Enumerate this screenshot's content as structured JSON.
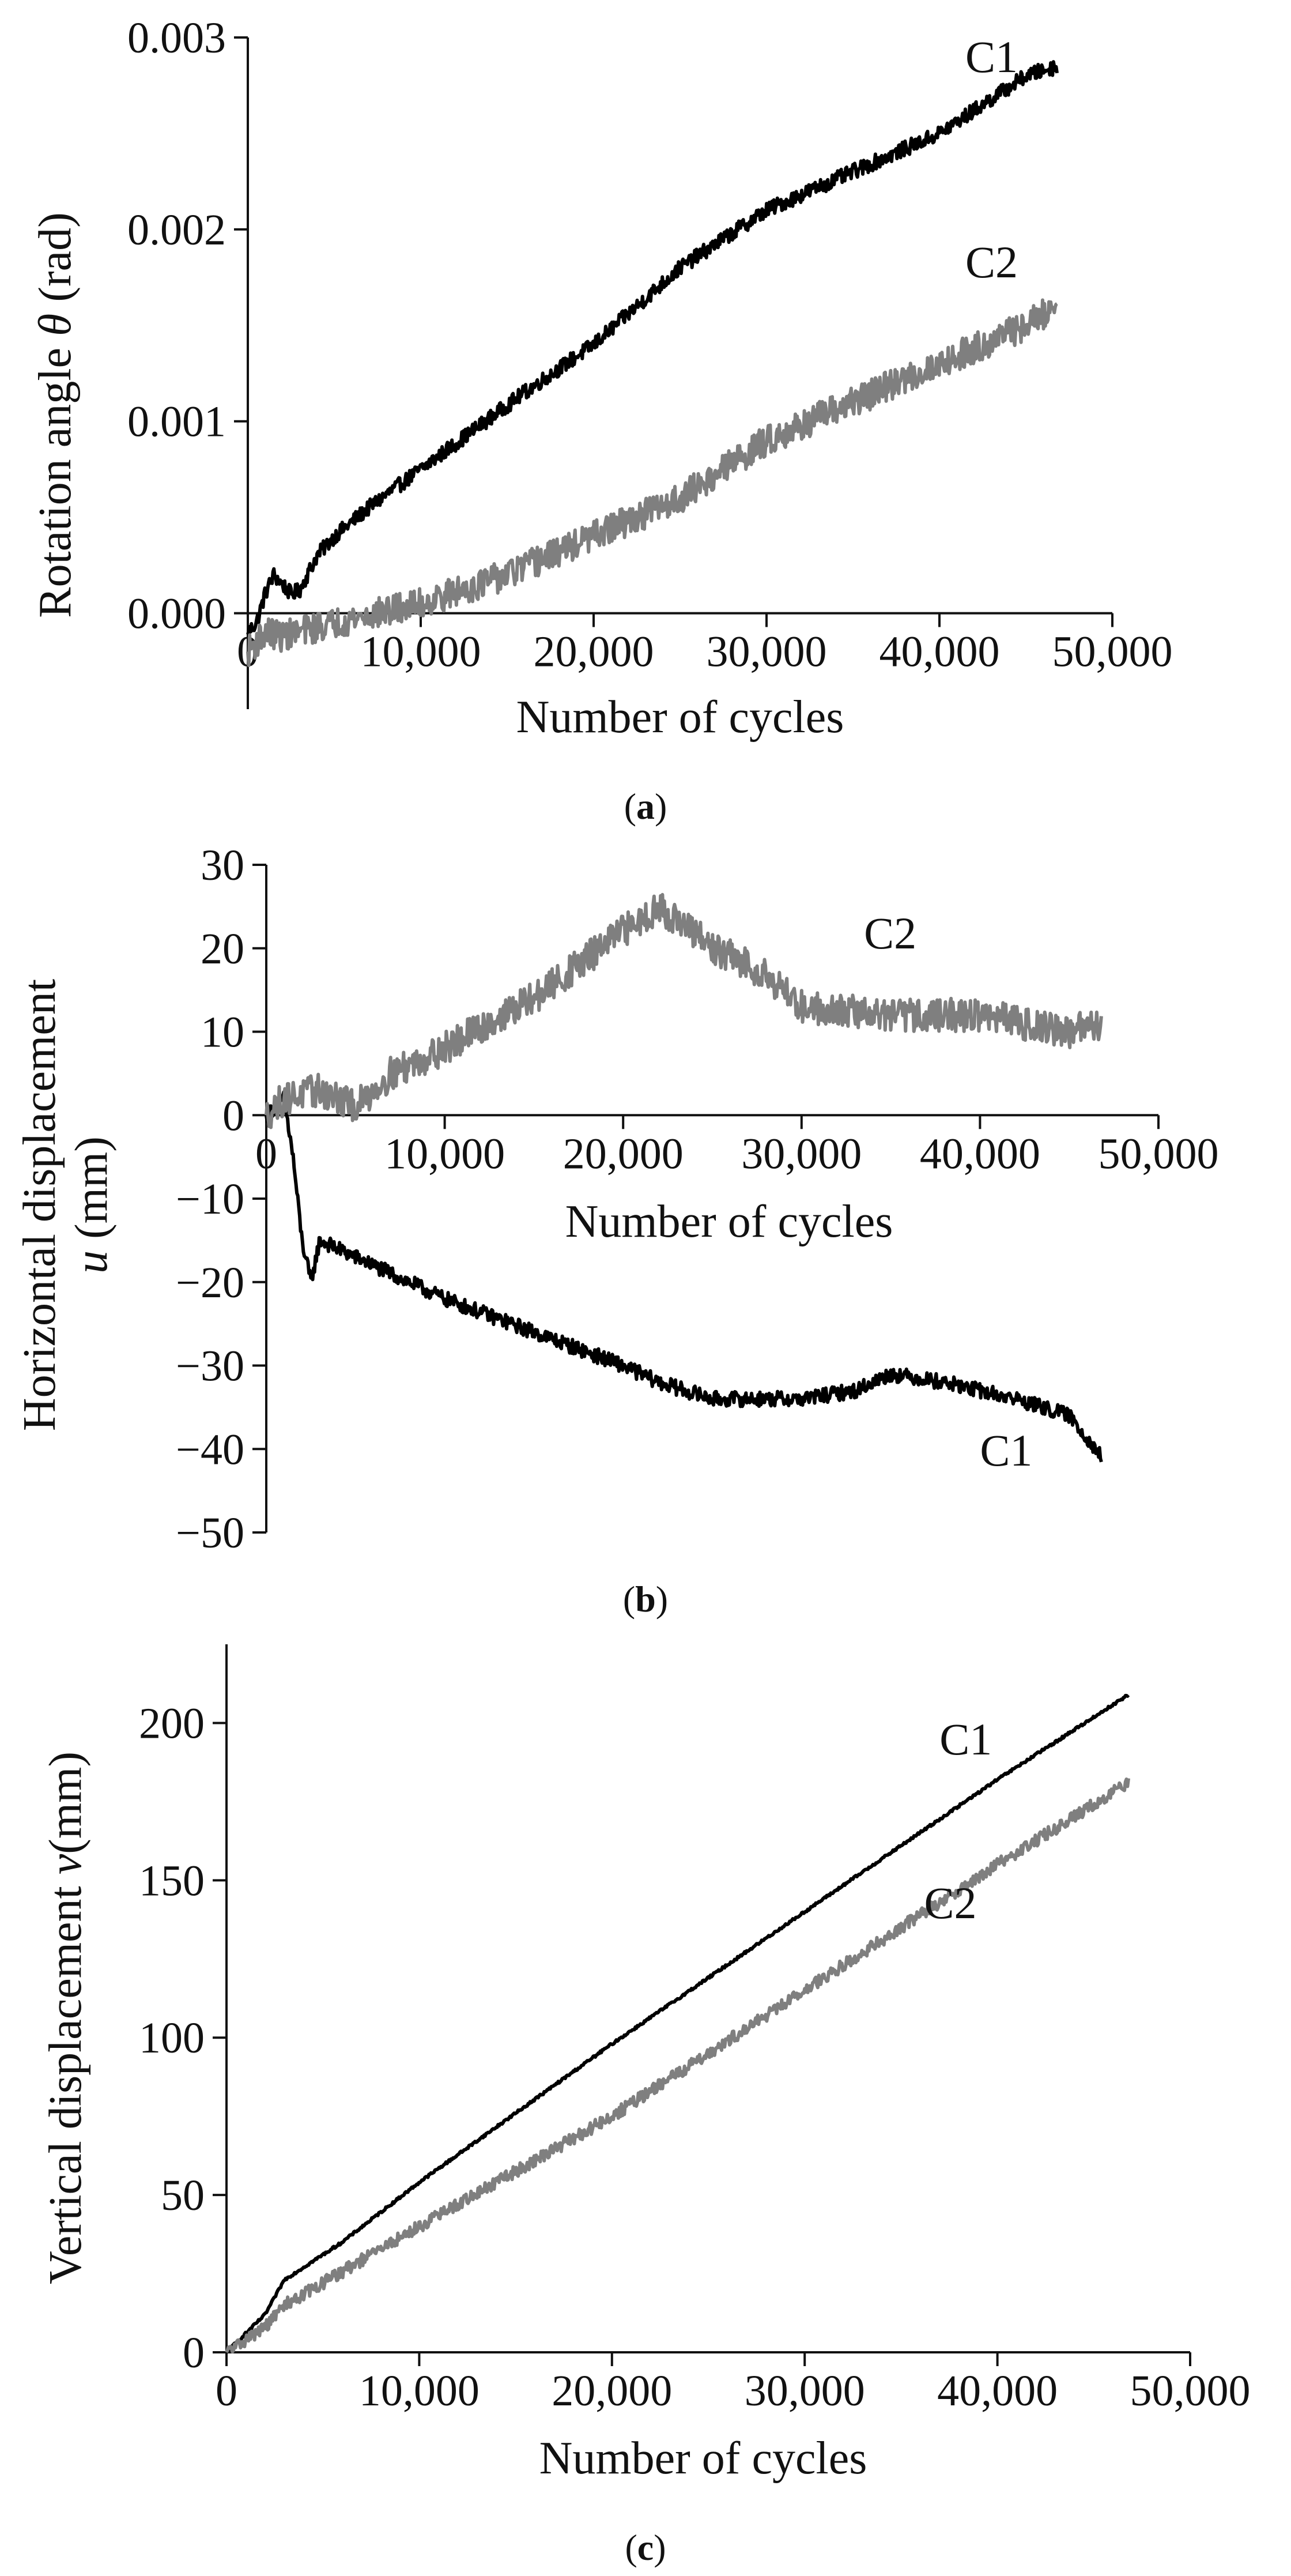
{
  "chart_data": [
    {
      "type": "line",
      "panel_label": "a",
      "title": "",
      "xlabel": "Number of cycles",
      "ylabel_prefix": "Rotation angle ",
      "ylabel_symbol": "θ",
      "ylabel_unit": " (rad)",
      "xlim": [
        0,
        50000
      ],
      "ylim": [
        -0.0005,
        0.003
      ],
      "x_ticks": [
        0,
        10000,
        20000,
        30000,
        40000,
        50000
      ],
      "x_tick_labels": [
        "0",
        "10,000",
        "20,000",
        "30,000",
        "40,000",
        "50,000"
      ],
      "y_ticks": [
        0,
        0.001,
        0.002,
        0.003
      ],
      "y_tick_labels": [
        "0.000",
        "0.001",
        "0.002",
        "0.003"
      ],
      "x_axis_at": 0,
      "grid": false,
      "series": [
        {
          "name": "C1",
          "color": "#000000",
          "noise": 4e-05,
          "x": [
            0,
            500,
            1000,
            1500,
            2000,
            2500,
            3000,
            4000,
            5000,
            7000,
            10000,
            13000,
            16000,
            20000,
            25000,
            30000,
            35000,
            40000,
            45000,
            46800
          ],
          "y": [
            -0.0001,
            -5e-05,
            0.0001,
            0.0002,
            0.00015,
            0.0001,
            0.00012,
            0.0003,
            0.0004,
            0.00055,
            0.00075,
            0.00095,
            0.00115,
            0.0014,
            0.0018,
            0.0021,
            0.0023,
            0.0025,
            0.0028,
            0.00285
          ],
          "label_at": [
            41500,
            0.00282
          ]
        },
        {
          "name": "C2",
          "color": "#7f7f7f",
          "noise": 8e-05,
          "x": [
            0,
            1000,
            2000,
            5000,
            10000,
            15000,
            20000,
            25000,
            30000,
            35000,
            40000,
            45000,
            46800
          ],
          "y": [
            -0.0002,
            -0.0001,
            -0.00012,
            -5e-05,
            5e-05,
            0.0002,
            0.0004,
            0.0006,
            0.0009,
            0.0011,
            0.0013,
            0.0015,
            0.0016
          ],
          "label_at": [
            41500,
            0.00175
          ]
        }
      ]
    },
    {
      "type": "line",
      "panel_label": "b",
      "title": "",
      "xlabel": "Number of cycles",
      "ylabel": "Horizontal displacement",
      "ylabel2_symbol": "u",
      "ylabel2_unit": " (mm)",
      "xlim": [
        0,
        50000
      ],
      "ylim": [
        -50,
        30
      ],
      "x_ticks": [
        0,
        10000,
        20000,
        30000,
        40000,
        50000
      ],
      "x_tick_labels": [
        "0",
        "10,000",
        "20,000",
        "30,000",
        "40,000",
        "50,000"
      ],
      "y_ticks": [
        -50,
        -40,
        -30,
        -20,
        -10,
        0,
        10,
        20,
        30
      ],
      "y_tick_labels": [
        "−50",
        "−40",
        "−30",
        "−20",
        "−10",
        "0",
        "10",
        "20",
        "30"
      ],
      "x_axis_at": 0,
      "grid": false,
      "series": [
        {
          "name": "C1",
          "color": "#000000",
          "noise": 0.9,
          "x": [
            0,
            1000,
            1500,
            2000,
            2500,
            3000,
            4000,
            6000,
            10000,
            15000,
            20000,
            22000,
            25000,
            30000,
            33000,
            35000,
            38000,
            42000,
            45000,
            46500,
            46800
          ],
          "y": [
            0,
            2,
            -5,
            -15,
            -20,
            -15,
            -16,
            -18,
            -22,
            -26,
            -30,
            -32,
            -34,
            -34,
            -33,
            -31,
            -32,
            -34,
            -36,
            -40,
            -41
          ],
          "label_at": [
            40000,
            -42
          ]
        },
        {
          "name": "C2",
          "color": "#7f7f7f",
          "noise": 2.0,
          "x": [
            0,
            1000,
            3000,
            5000,
            7000,
            10000,
            15000,
            20000,
            22000,
            25000,
            28000,
            30000,
            35000,
            40000,
            45000,
            46800
          ],
          "y": [
            0,
            2,
            3,
            1,
            5,
            8,
            14,
            22,
            25,
            20,
            17,
            13,
            12,
            12,
            10,
            11
          ],
          "label_at": [
            33500,
            20
          ]
        }
      ]
    },
    {
      "type": "line",
      "panel_label": "c",
      "title": "",
      "xlabel": "Number of cycles",
      "ylabel_prefix": "Vertical displacement ",
      "ylabel_symbol": "v",
      "ylabel_unit": "(mm)",
      "xlim": [
        0,
        50000
      ],
      "ylim": [
        0,
        225
      ],
      "x_ticks": [
        0,
        10000,
        20000,
        30000,
        40000,
        50000
      ],
      "x_tick_labels": [
        "0",
        "10,000",
        "20,000",
        "30,000",
        "40,000",
        "50,000"
      ],
      "y_ticks": [
        0,
        50,
        100,
        150,
        200
      ],
      "y_tick_labels": [
        "0",
        "50",
        "100",
        "150",
        "200"
      ],
      "x_axis_at": 0,
      "grid": false,
      "series": [
        {
          "name": "C1",
          "color": "#000000",
          "noise": 0.4,
          "x": [
            0,
            2000,
            3000,
            4000,
            6000,
            10000,
            20000,
            30000,
            40000,
            46800
          ],
          "y": [
            0,
            12,
            23,
            27,
            35,
            54,
            98,
            140,
            182,
            209
          ],
          "label_at": [
            37000,
            190
          ]
        },
        {
          "name": "C2",
          "color": "#7f7f7f",
          "noise": 2.0,
          "x": [
            0,
            2000,
            3000,
            5000,
            10000,
            20000,
            30000,
            40000,
            46800
          ],
          "y": [
            0,
            8,
            15,
            22,
            40,
            75,
            115,
            155,
            181
          ],
          "label_at": [
            36200,
            138
          ]
        }
      ]
    }
  ]
}
